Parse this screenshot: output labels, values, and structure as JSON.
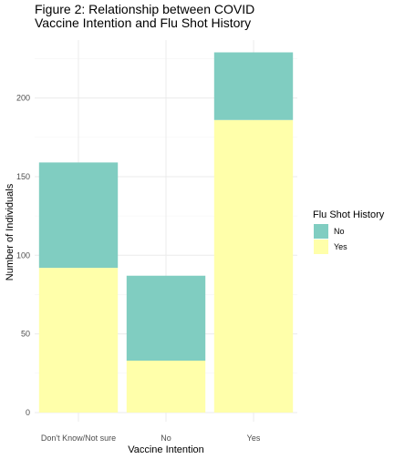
{
  "chart_data": {
    "type": "bar",
    "stacked": true,
    "title_lines": [
      "Figure 2: Relationship between COVID",
      "Vaccine Intention and Flu Shot History"
    ],
    "xlabel": "Vaccine Intention",
    "ylabel": "Number of Individuals",
    "categories": [
      "Don't Know/Not sure",
      "No",
      "Yes"
    ],
    "series": [
      {
        "name": "Yes",
        "color": "#ffffaa",
        "values": [
          92,
          33,
          186
        ]
      },
      {
        "name": "No",
        "color": "#80cdc1",
        "values": [
          67,
          54,
          43
        ]
      }
    ],
    "ylim": [
      0,
      229
    ],
    "yticks": [
      0,
      50,
      100,
      150,
      200
    ],
    "yminor": [
      25,
      75,
      125,
      175,
      225
    ],
    "grid": true,
    "legend": {
      "title": "Flu Shot History",
      "placement": "right",
      "entries": [
        {
          "label": "No",
          "color": "#80cdc1"
        },
        {
          "label": "Yes",
          "color": "#ffffaa"
        }
      ]
    }
  }
}
